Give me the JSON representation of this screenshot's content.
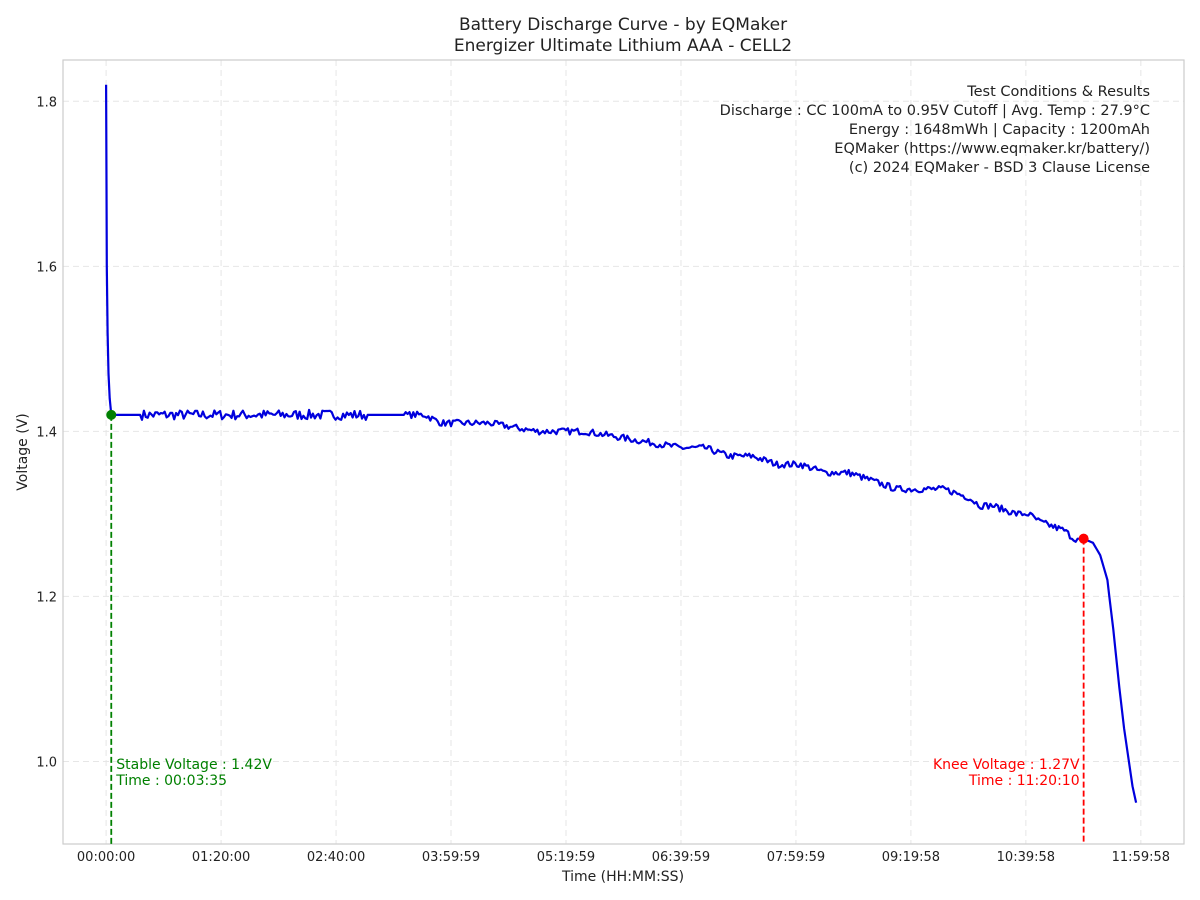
{
  "chart_data": {
    "type": "line",
    "title": "Battery Discharge Curve - by EQMaker",
    "subtitle": "Energizer Ultimate Lithium AAA - CELL2",
    "xlabel": "Time (HH:MM:SS)",
    "ylabel": "Voltage (V)",
    "xlim_seconds": [
      -1800,
      45000
    ],
    "ylim": [
      0.9,
      1.85
    ],
    "grid": true,
    "x_ticks": [
      {
        "value": 0,
        "label": "00:00:00"
      },
      {
        "value": 4800,
        "label": "01:20:00"
      },
      {
        "value": 9600,
        "label": "02:40:00"
      },
      {
        "value": 14399,
        "label": "03:59:59"
      },
      {
        "value": 19199,
        "label": "05:19:59"
      },
      {
        "value": 23999,
        "label": "06:39:59"
      },
      {
        "value": 28799,
        "label": "07:59:59"
      },
      {
        "value": 33598,
        "label": "09:19:58"
      },
      {
        "value": 38398,
        "label": "10:39:58"
      },
      {
        "value": 43198,
        "label": "11:59:58"
      }
    ],
    "y_ticks": [
      {
        "value": 1.0,
        "label": "1.0"
      },
      {
        "value": 1.2,
        "label": "1.2"
      },
      {
        "value": 1.4,
        "label": "1.4"
      },
      {
        "value": 1.6,
        "label": "1.6"
      },
      {
        "value": 1.8,
        "label": "1.8"
      }
    ],
    "series": [
      {
        "name": "Voltage",
        "color": "#0000dd",
        "x": [
          0,
          15,
          30,
          60,
          100,
          150,
          215,
          600,
          1500,
          3000,
          5000,
          8000,
          11000,
          13300,
          14000,
          16000,
          18000,
          20000,
          22000,
          24000,
          25000,
          26000,
          27000,
          28000,
          29000,
          30000,
          31000,
          32000,
          33000,
          34000,
          35000,
          36000,
          36500,
          37000,
          38000,
          38500,
          39000,
          40000,
          40400,
          40800,
          41200,
          41500,
          41800,
          42050,
          42300,
          42500,
          42700,
          42850,
          43000
        ],
        "y": [
          1.82,
          1.7,
          1.6,
          1.52,
          1.47,
          1.44,
          1.42,
          1.42,
          1.42,
          1.42,
          1.42,
          1.42,
          1.42,
          1.42,
          1.41,
          1.41,
          1.4,
          1.4,
          1.39,
          1.38,
          1.38,
          1.37,
          1.37,
          1.36,
          1.36,
          1.35,
          1.35,
          1.34,
          1.33,
          1.33,
          1.33,
          1.32,
          1.31,
          1.31,
          1.3,
          1.3,
          1.29,
          1.28,
          1.27,
          1.27,
          1.265,
          1.25,
          1.22,
          1.16,
          1.09,
          1.04,
          1.0,
          0.97,
          0.95
        ]
      }
    ],
    "noise_regions": [
      [
        1500,
        10900,
        0.006
      ],
      [
        12500,
        40500,
        0.004
      ]
    ],
    "markers": [
      {
        "name": "stable",
        "x": 215,
        "y": 1.42,
        "color": "#008000",
        "label_lines": [
          "Stable Voltage : 1.42V",
          "Time : 00:03:35"
        ],
        "align": "left"
      },
      {
        "name": "knee",
        "x": 40810,
        "y": 1.27,
        "color": "#ff0000",
        "label_lines": [
          "Knee Voltage : 1.27V",
          "Time : 11:20:10"
        ],
        "align": "right"
      }
    ],
    "info_box": {
      "placement": "top-right",
      "lines": [
        "Test Conditions & Results",
        "Discharge : CC 100mA to 0.95V Cutoff | Avg. Temp : 27.9°C",
        "Energy : 1648mWh | Capacity : 1200mAh",
        "EQMaker (https://www.eqmaker.kr/battery/)",
        "(c) 2024 EQMaker - BSD 3 Clause License"
      ]
    }
  }
}
